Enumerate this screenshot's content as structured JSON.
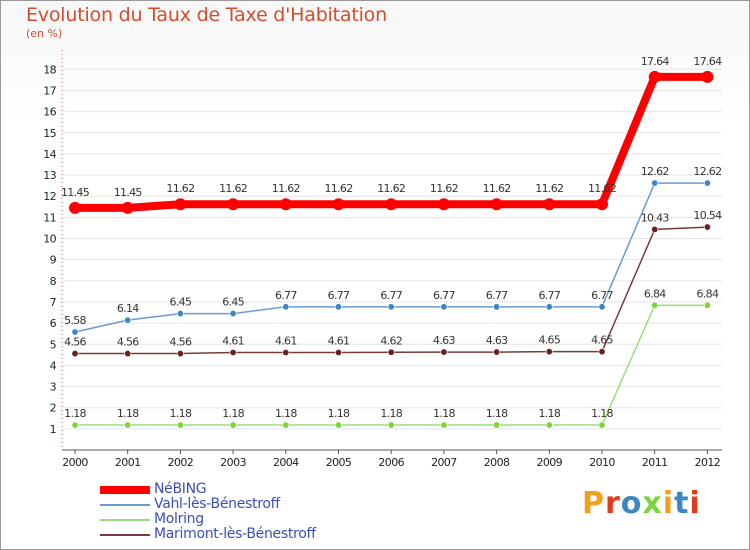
{
  "chart_data": {
    "type": "line",
    "title": "Evolution du Taux de Taxe d'Habitation",
    "subtitle": "(en %)",
    "x": [
      "2000",
      "2001",
      "2002",
      "2003",
      "2004",
      "2005",
      "2006",
      "2007",
      "2008",
      "2009",
      "2010",
      "2011",
      "2012"
    ],
    "ylim": [
      0,
      18
    ],
    "yticks": [
      1,
      2,
      3,
      4,
      5,
      6,
      7,
      8,
      9,
      10,
      11,
      12,
      13,
      14,
      15,
      16,
      17,
      18
    ],
    "series": [
      {
        "name": "NéBING",
        "color": "#ff0000",
        "width": 8,
        "values": [
          11.45,
          11.45,
          11.62,
          11.62,
          11.62,
          11.62,
          11.62,
          11.62,
          11.62,
          11.62,
          11.62,
          17.64,
          17.64
        ],
        "labels": [
          "11.45",
          "11.45",
          "11.62",
          "11.62",
          "11.62",
          "11.62",
          "11.62",
          "11.62",
          "11.62",
          "11.62",
          "11.62",
          "17.64",
          "17.64"
        ]
      },
      {
        "name": "Vahl-lès-Bénestroff",
        "color": "#6b9ad0",
        "marker": "#3d86c6",
        "width": 1.5,
        "values": [
          5.58,
          6.14,
          6.45,
          6.45,
          6.77,
          6.77,
          6.77,
          6.77,
          6.77,
          6.77,
          6.77,
          12.62,
          12.62
        ],
        "labels": [
          "5.58",
          "6.14",
          "6.45",
          "6.45",
          "6.77",
          "6.77",
          "6.77",
          "6.77",
          "6.77",
          "6.77",
          "6.77",
          "12.62",
          "12.62"
        ]
      },
      {
        "name": "Molring",
        "color": "#99dd77",
        "marker": "#7cd63b",
        "width": 1.5,
        "values": [
          1.18,
          1.18,
          1.18,
          1.18,
          1.18,
          1.18,
          1.18,
          1.18,
          1.18,
          1.18,
          1.18,
          6.84,
          6.84
        ],
        "labels": [
          "1.18",
          "1.18",
          "1.18",
          "1.18",
          "1.18",
          "1.18",
          "1.18",
          "1.18",
          "1.18",
          "1.18",
          "1.18",
          "6.84",
          "6.84"
        ]
      },
      {
        "name": "Marimont-lès-Bénestroff",
        "color": "#7a3a3a",
        "marker": "#6b1f1f",
        "width": 1.5,
        "values": [
          4.56,
          4.56,
          4.56,
          4.61,
          4.61,
          4.61,
          4.62,
          4.63,
          4.63,
          4.65,
          4.65,
          10.43,
          10.54
        ],
        "labels": [
          "4.56",
          "4.56",
          "4.56",
          "4.61",
          "4.61",
          "4.61",
          "4.62",
          "4.63",
          "4.63",
          "4.65",
          "4.65",
          "10.43",
          "10.54"
        ]
      }
    ],
    "legend_position": "bottom-left"
  },
  "logo": {
    "text": "Proxiti",
    "letter_colors": [
      "#f2a01c",
      "#e23a1b",
      "#3d86c6",
      "#7cd63b",
      "#f2a01c",
      "#3d86c6",
      "#e23a1b"
    ]
  }
}
